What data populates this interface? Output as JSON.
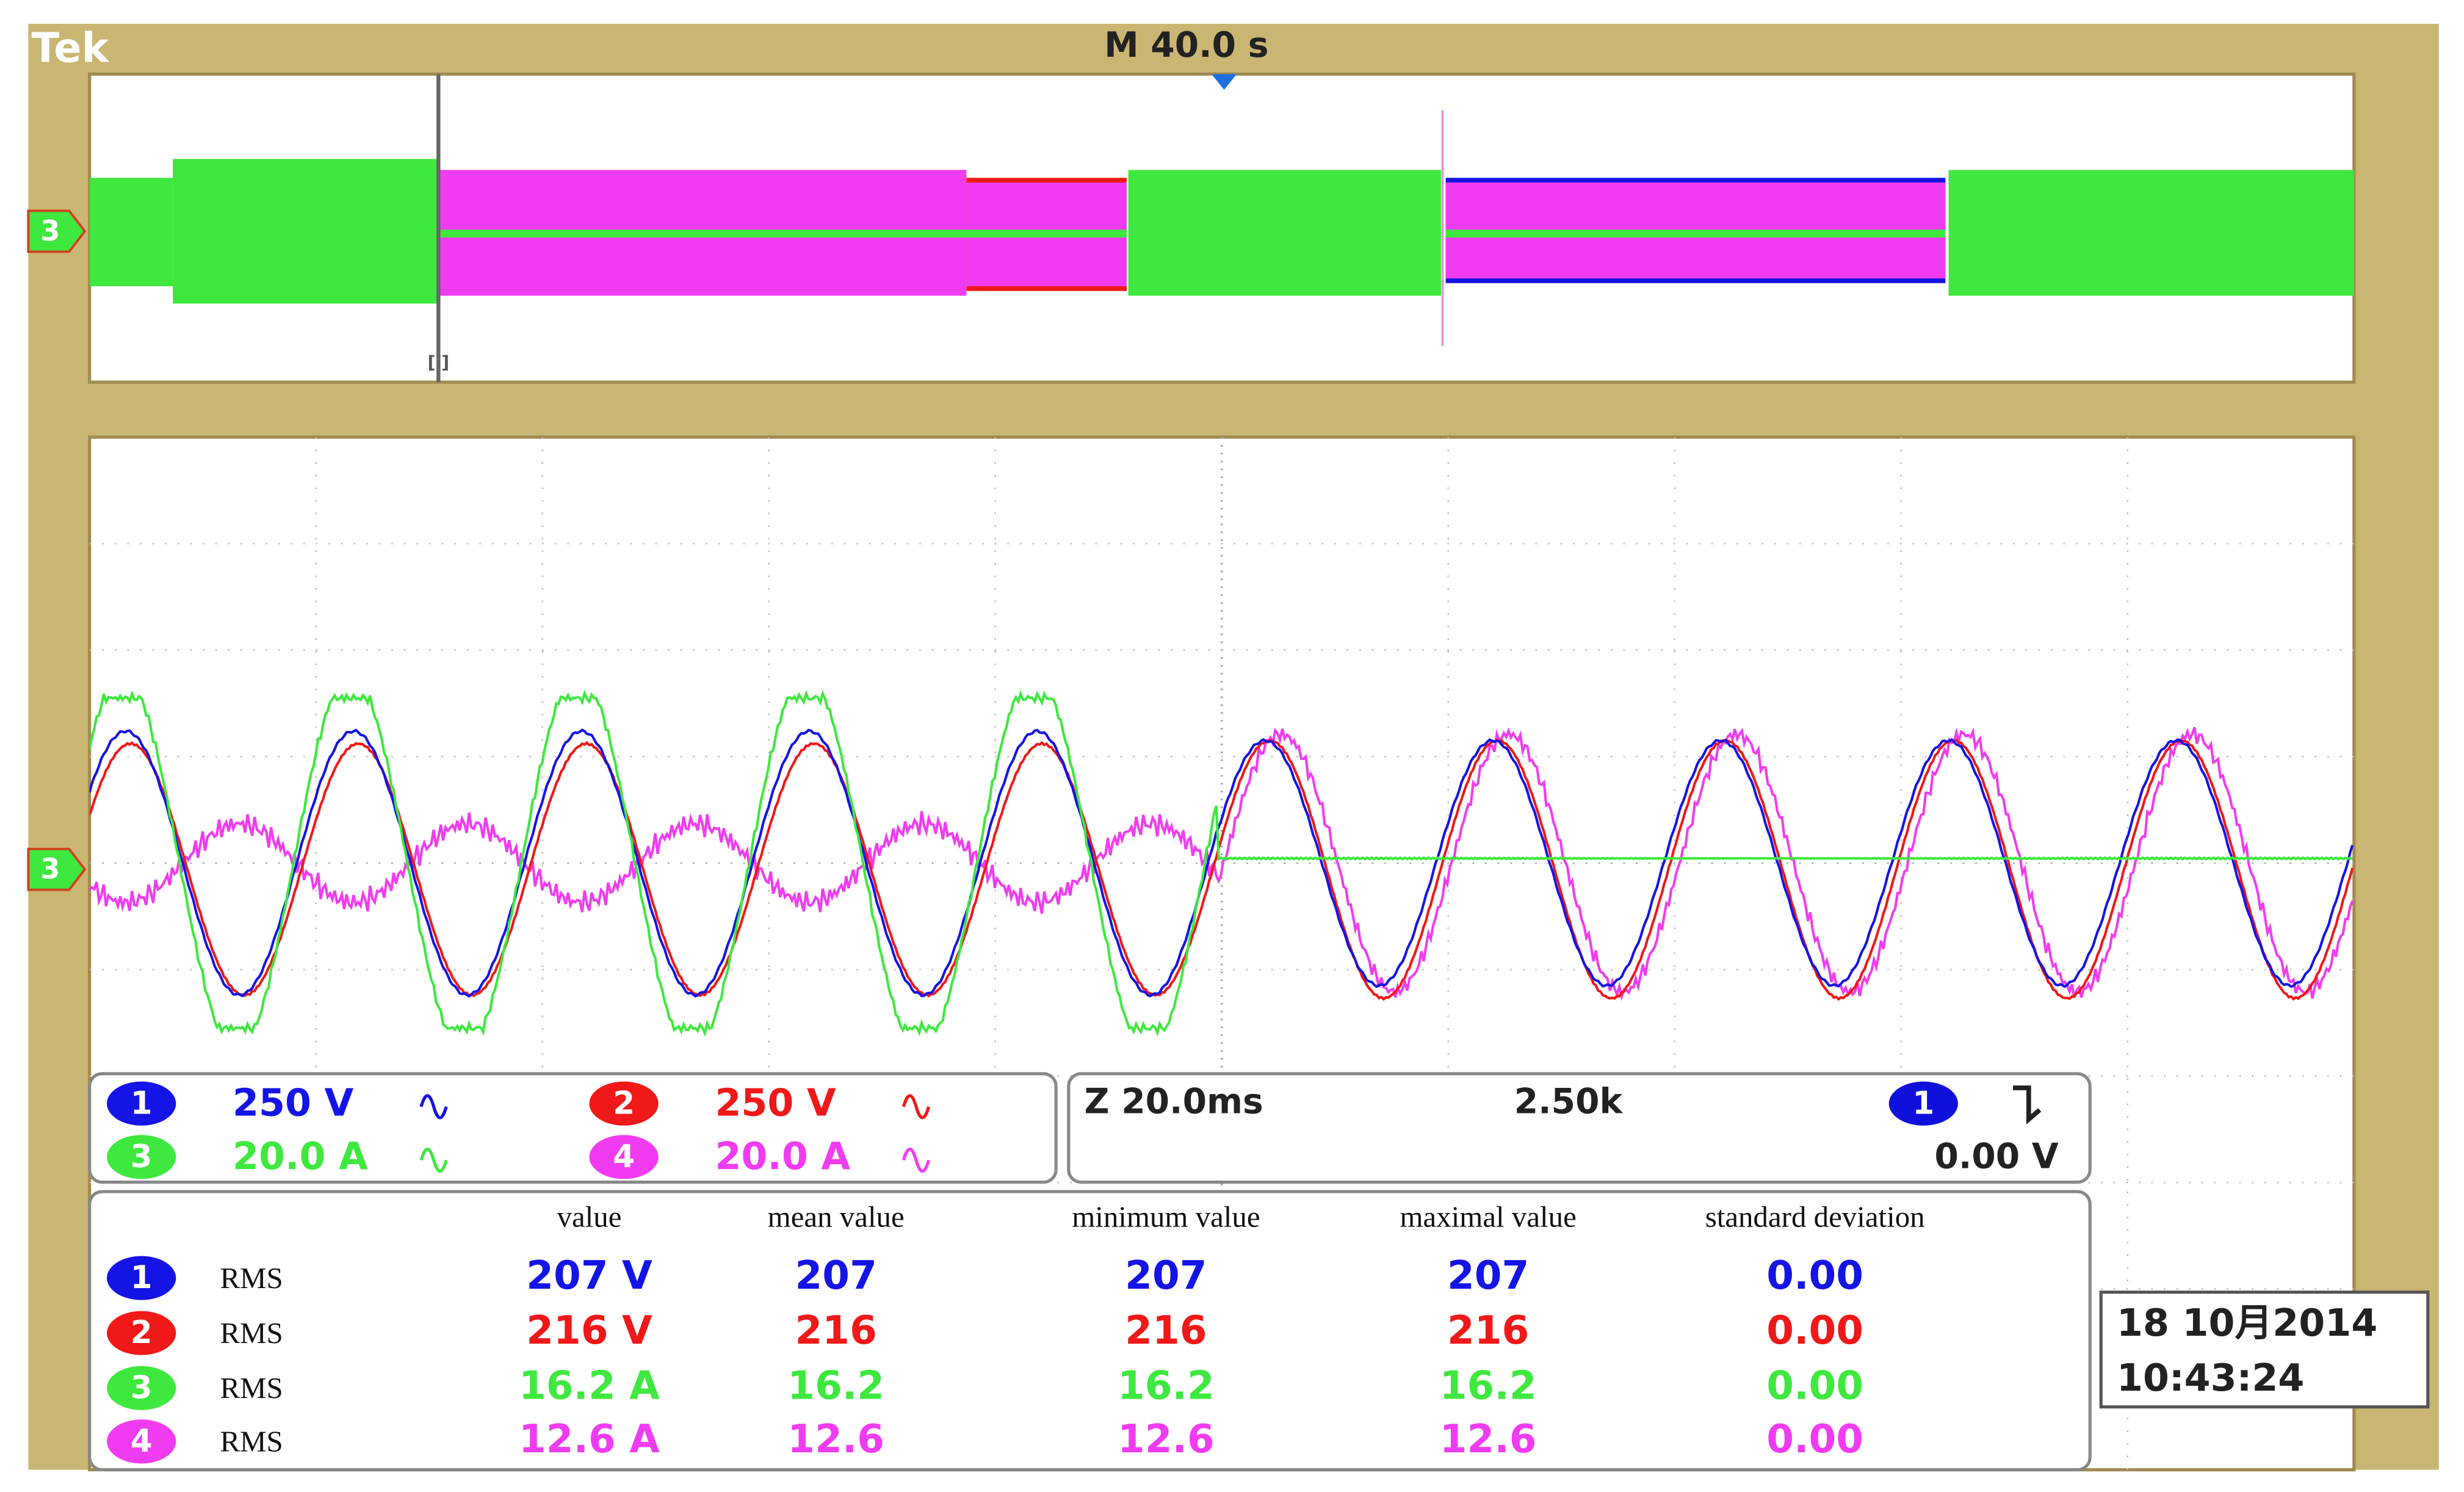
{
  "header": {
    "brand": "Tek",
    "timebase": "M 40.0 s"
  },
  "channel_marker": "3",
  "cursor_marker": "[ ]",
  "channel_settings": [
    {
      "number": "1",
      "scale": "250 V"
    },
    {
      "number": "2",
      "scale": "250 V"
    },
    {
      "number": "3",
      "scale": "20.0 A"
    },
    {
      "number": "4",
      "scale": "20.0 A"
    }
  ],
  "zoom": {
    "factor": "Z 20.0ms",
    "ratio": "2.50k"
  },
  "trigger": {
    "channel": "1",
    "level": "0.00 V"
  },
  "measurements": {
    "columns": [
      "value",
      "mean value",
      "minimum value",
      "maximal value",
      "standard deviation"
    ],
    "rows": [
      {
        "channel": "1",
        "type": "RMS",
        "cells": [
          "207 V",
          "207",
          "207",
          "207",
          "0.00"
        ]
      },
      {
        "channel": "2",
        "type": "RMS",
        "cells": [
          "216 V",
          "216",
          "216",
          "216",
          "0.00"
        ]
      },
      {
        "channel": "3",
        "type": "RMS",
        "cells": [
          "16.2 A",
          "16.2",
          "16.2",
          "16.2",
          "0.00"
        ]
      },
      {
        "channel": "4",
        "type": "RMS",
        "cells": [
          "12.6 A",
          "12.6",
          "12.6",
          "12.6",
          "0.00"
        ]
      }
    ]
  },
  "datetime": {
    "date": "18 10月2014",
    "time": "10:43:24"
  }
}
